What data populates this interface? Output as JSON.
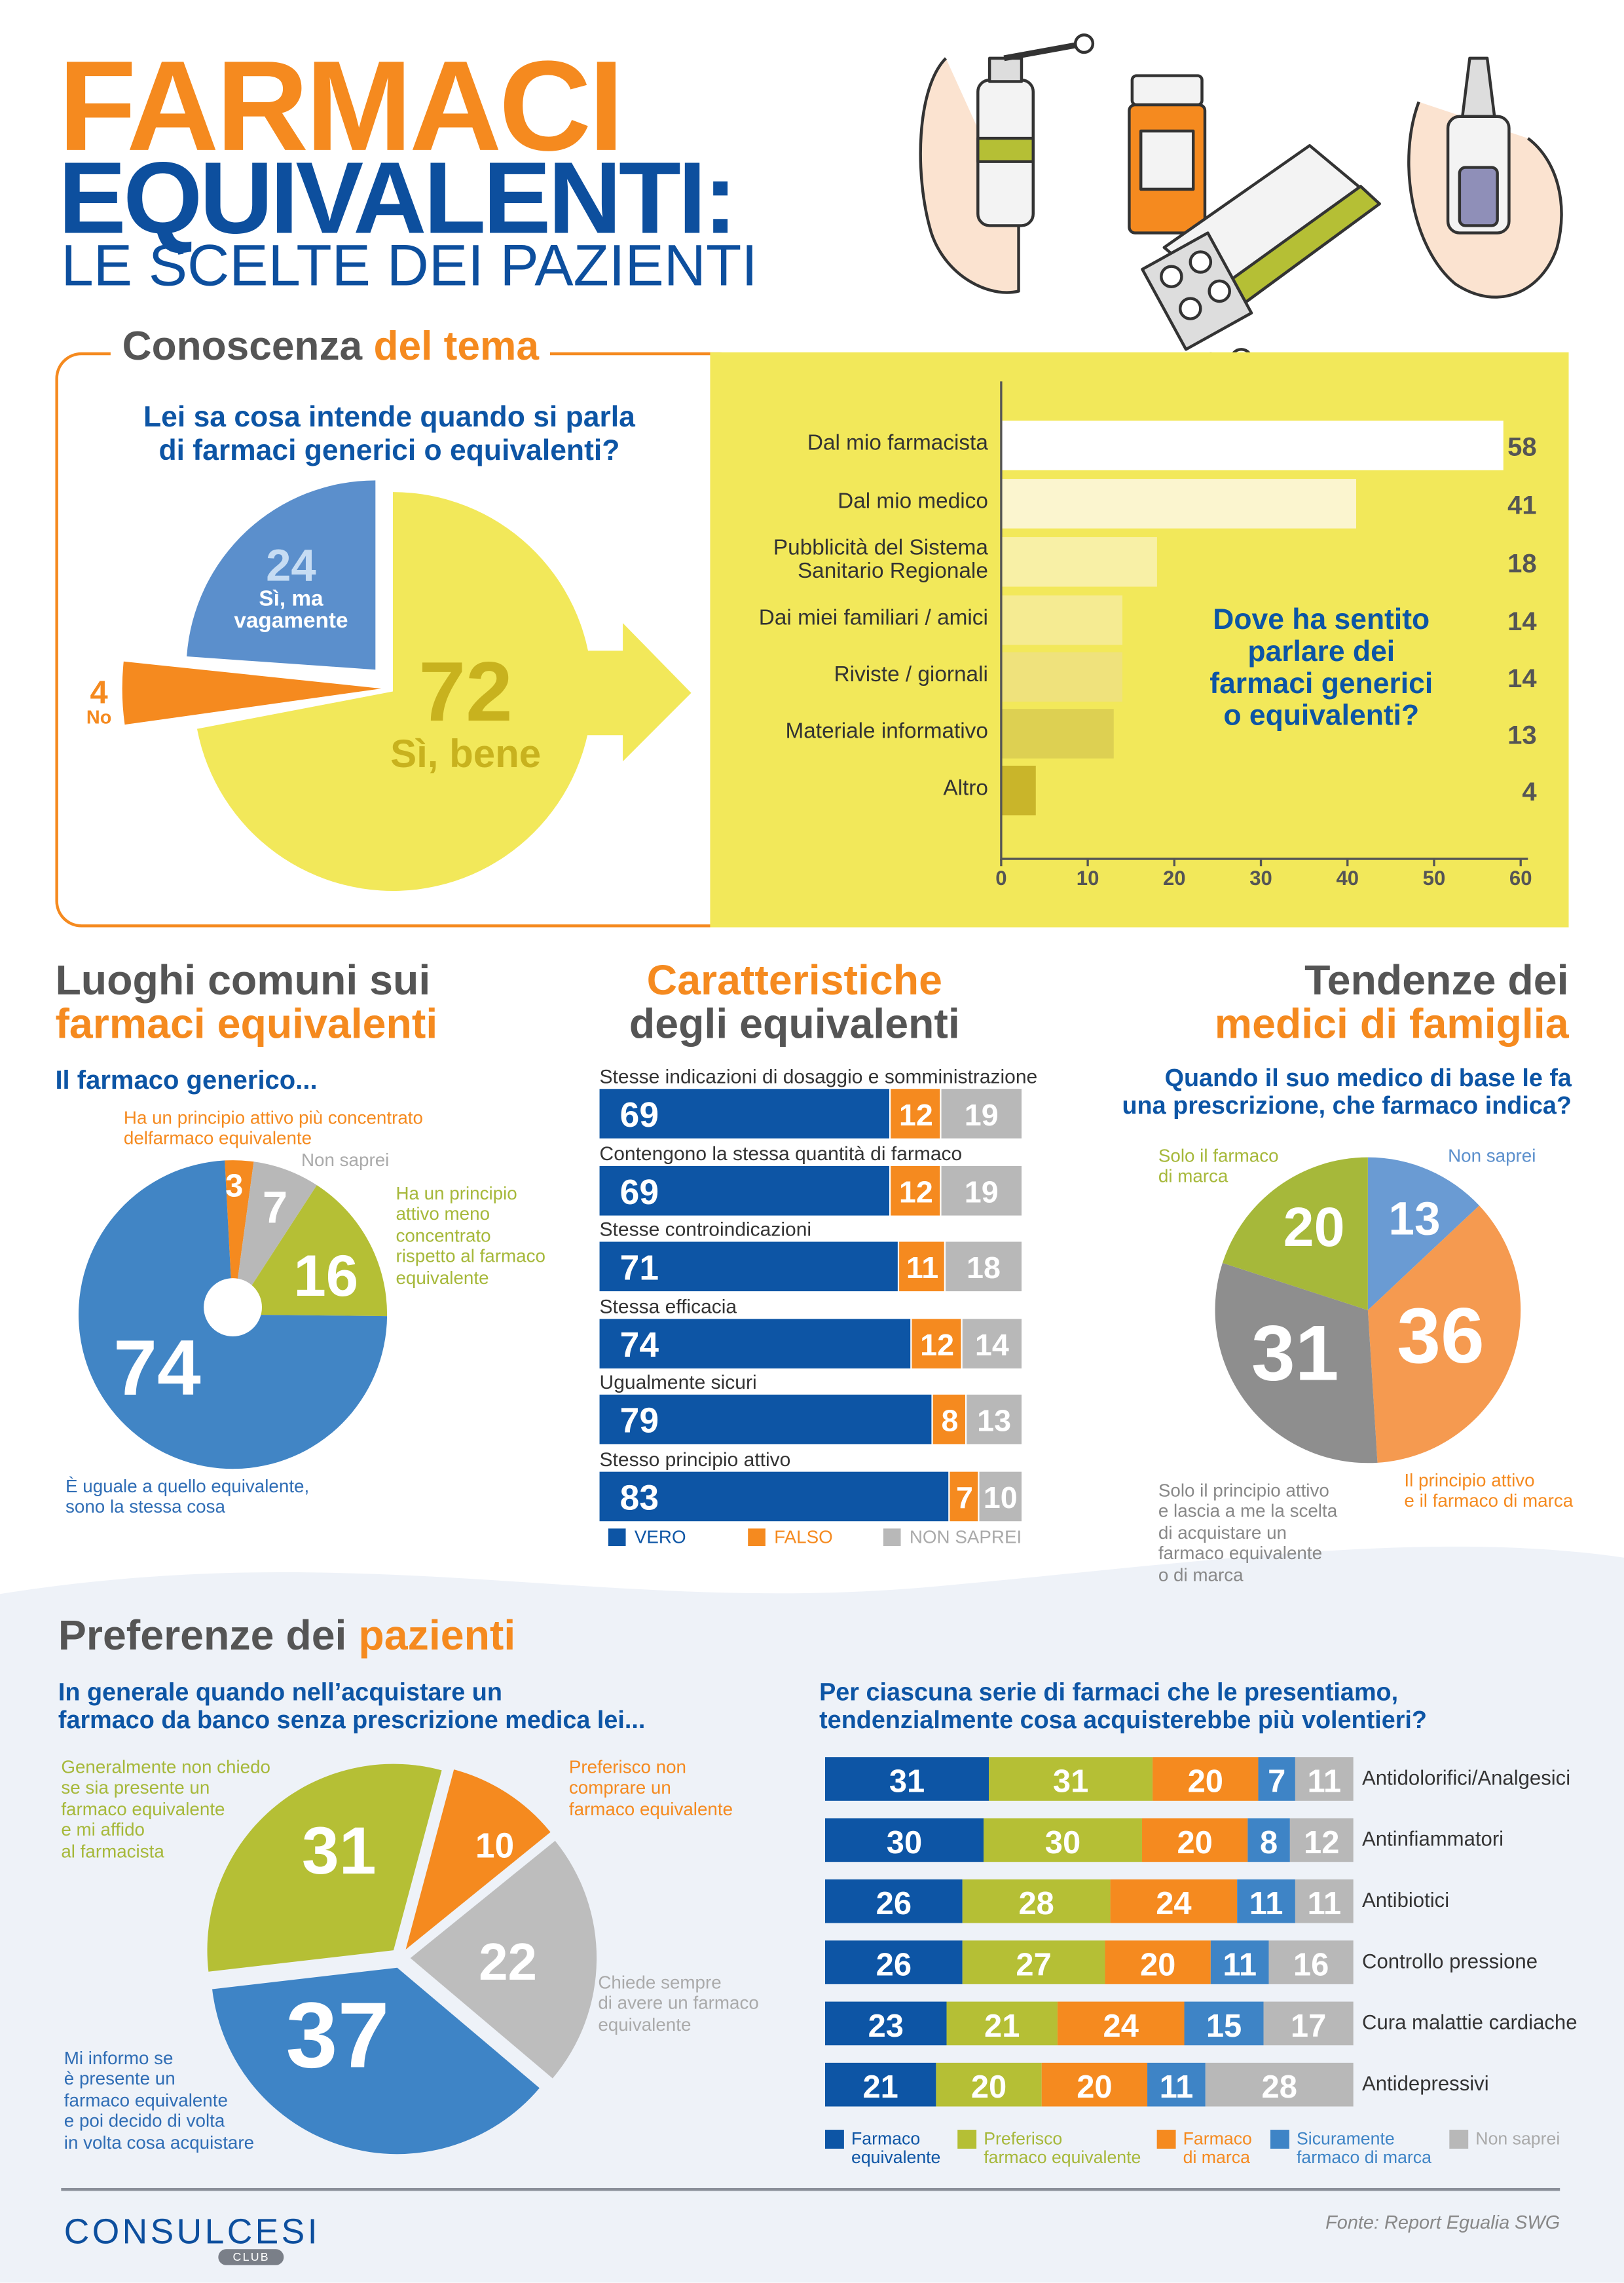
{
  "header": {
    "title_line1": "FARMACI",
    "title_line2": "EQUIVALENTI:",
    "subtitle": "LE SCELTE DEI PAZIENTI"
  },
  "colors": {
    "orange": "#f58a1f",
    "navy": "#0d4f9e",
    "blue": "#3e84c6",
    "olive": "#b5bf35",
    "gray": "#b8b8b8",
    "yellow": "#f2e85a",
    "dark_text": "#555555"
  },
  "section_conoscenza": {
    "title_a": "Conoscenza",
    "title_b": "del tema",
    "question": "Lei sa cosa intende quando si parla\ndi farmaci generici o equivalenti?",
    "bar_question": "Dove ha sentito\nparlare dei\nfarmaci generici\no equivalenti?"
  },
  "section_luoghi": {
    "title_a": "Luoghi comuni sui",
    "title_b": "farmaci equivalenti",
    "question": "Il farmaco generico..."
  },
  "section_caratteristiche": {
    "title_a": "Caratteristiche",
    "title_b": "degli equivalenti"
  },
  "section_tendenze": {
    "title_a": "Tendenze dei",
    "title_b": "medici di famiglia",
    "question": "Quando il suo medico di base le fa\nuna prescrizione, che farmaco indica?"
  },
  "section_preferenze": {
    "title_a": "Preferenze dei",
    "title_b": "pazienti",
    "question_left": "In generale quando nell’acquistare un\nfarmaco da banco senza prescrizione medica lei...",
    "question_right": "Per ciascuna serie di farmaci che le presentiamo,\ntendenzialmente cosa acquisterebbe più volentieri?"
  },
  "footer": {
    "logo": "CONSULCESI",
    "logo_badge": "CLUB",
    "source": "Fonte: Report Egualia SWG"
  },
  "chart_data": [
    {
      "type": "pie",
      "title": "Lei sa cosa intende quando si parla di farmaci generici o equivalenti?",
      "slices": [
        {
          "label": "Sì, bene",
          "value": 72,
          "color": "#f2e85a"
        },
        {
          "label": "No",
          "value": 4,
          "color": "#f58a1f"
        },
        {
          "label": "Sì, ma\nvagamente",
          "value": 24,
          "color": "#5b8fcc"
        }
      ]
    },
    {
      "type": "bar",
      "orientation": "horizontal",
      "title": "Dove ha sentito parlare dei farmaci generici o equivalenti?",
      "categories": [
        "Dal mio farmacista",
        "Dal mio medico",
        "Pubblicità del Sistema\nSanitario Regionale",
        "Dai miei familiari / amici",
        "Riviste / giornali",
        "Materiale informativo",
        "Altro"
      ],
      "values": [
        58,
        41,
        18,
        14,
        14,
        13,
        4
      ],
      "bar_colors": [
        "#ffffff",
        "#fbf5cf",
        "#f8f0a6",
        "#f5eb92",
        "#efe27c",
        "#ddd052",
        "#c9b52a"
      ],
      "xlim": [
        0,
        60
      ],
      "xticks": [
        "0",
        "10",
        "20",
        "30",
        "40",
        "50",
        "60"
      ]
    },
    {
      "type": "pie",
      "title": "Il farmaco generico...",
      "slices": [
        {
          "label": "Ha un principio attivo più concentrato\ndelfarmaco equivalente",
          "value": 3,
          "color": "#f58a1f"
        },
        {
          "label": "Non saprei",
          "value": 7,
          "color": "#b8b8b8"
        },
        {
          "label": "Ha un principio\nattivo meno\nconcentrato\nrispetto al farmaco\nequivalente",
          "value": 16,
          "color": "#b5bf35"
        },
        {
          "label": "È uguale a quello equivalente,\nsono la stessa cosa",
          "value": 74,
          "color": "#4185c5"
        }
      ]
    },
    {
      "type": "bar",
      "orientation": "horizontal",
      "stacked": true,
      "title": "Caratteristiche degli equivalenti",
      "categories": [
        "Stesse indicazioni di dosaggio e somministrazione",
        "Contengono la stessa quantità di farmaco",
        "Stesse controindicazioni",
        "Stessa efficacia",
        "Ugualmente sicuri",
        "Stesso principio attivo"
      ],
      "series": [
        {
          "name": "VERO",
          "values": [
            69,
            69,
            71,
            74,
            79,
            83
          ],
          "color": "#0d55a5"
        },
        {
          "name": "FALSO",
          "values": [
            12,
            12,
            11,
            12,
            8,
            7
          ],
          "color": "#f58a1f"
        },
        {
          "name": "NON SAPREI",
          "values": [
            19,
            19,
            18,
            14,
            13,
            10
          ],
          "color": "#b8b8b8"
        }
      ],
      "legend": "bottom"
    },
    {
      "type": "pie",
      "title": "Quando il suo medico di base le fa una prescrizione, che farmaco indica?",
      "slices": [
        {
          "label": "Non saprei",
          "value": 13,
          "color": "#6a9bd3"
        },
        {
          "label": "Il principio attivo\ne il farmaco  di marca",
          "value": 36,
          "color": "#f59a50"
        },
        {
          "label": "Solo il principio attivo\ne lascia a me la scelta\ndi acquistare un\nfarmaco equivalente\no di marca",
          "value": 31,
          "color": "#8e8e8e"
        },
        {
          "label": "Solo il farmaco\ndi marca",
          "value": 20,
          "color": "#a6b83a"
        }
      ]
    },
    {
      "type": "pie",
      "title": "In generale quando nell’acquistare un farmaco da banco senza prescrizione medica lei...",
      "slices": [
        {
          "label": "Preferisco non\ncomprare un\nfarmaco equivalente",
          "value": 10,
          "color": "#f58a1f"
        },
        {
          "label": "Chiede sempre\ndi avere un farmaco\nequivalente",
          "value": 22,
          "color": "#bdbdbd"
        },
        {
          "label": "Mi informo se\nè presente un\nfarmaco equivalente\ne poi decido di volta\nin volta cosa acquistare",
          "value": 37,
          "color": "#3e84c6"
        },
        {
          "label": "Generalmente non chiedo\nse sia presente un\nfarmaco equivalente\ne mi affido\nal farmacista",
          "value": 31,
          "color": "#b5bf35"
        }
      ]
    },
    {
      "type": "bar",
      "orientation": "horizontal",
      "stacked": true,
      "title": "Per ciascuna serie di farmaci che le presentiamo, tendenzialmente cosa acquisterebbe più volentieri?",
      "categories": [
        "Antidolorifici/Analgesici",
        "Antinfiammatori",
        "Antibiotici",
        "Controllo pressione",
        "Cura malattie cardiache",
        "Antidepressivi"
      ],
      "series": [
        {
          "name": "Farmaco\nequivalente",
          "values": [
            31,
            30,
            26,
            26,
            23,
            21
          ],
          "color": "#0d55a5"
        },
        {
          "name": "Preferisco\nfarmaco equivalente",
          "values": [
            31,
            30,
            28,
            27,
            21,
            20
          ],
          "color": "#b5bf35"
        },
        {
          "name": "Farmaco\ndi marca",
          "values": [
            20,
            20,
            24,
            20,
            24,
            20
          ],
          "color": "#f58a1f"
        },
        {
          "name": "Sicuramente\nfarmaco di marca",
          "values": [
            7,
            8,
            11,
            11,
            15,
            11
          ],
          "color": "#3e84c6"
        },
        {
          "name": "Non saprei",
          "values": [
            11,
            12,
            11,
            16,
            17,
            28
          ],
          "color": "#b8b8b8"
        }
      ],
      "legend": "bottom"
    }
  ]
}
